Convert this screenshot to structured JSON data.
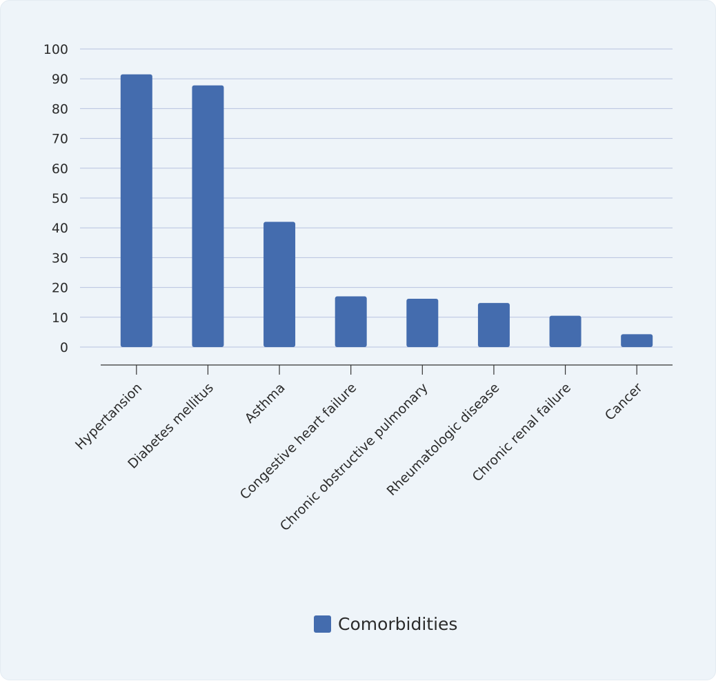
{
  "chart_data": {
    "type": "bar",
    "categories": [
      "Hypertansion",
      "Diabetes mellitus",
      "Asthma",
      "Congestive heart failure",
      "Chronic obstructive pulmonary",
      "Rheumatologic disease",
      "Chronic renal failure",
      "Cancer"
    ],
    "series": [
      {
        "name": "Comorbidities",
        "values": [
          91.5,
          87.8,
          42.0,
          17.0,
          16.2,
          14.8,
          10.5,
          4.3
        ],
        "color": "#446cae"
      }
    ],
    "ylim": [
      0,
      100
    ],
    "yticks": [
      "100",
      "90",
      "80",
      "70",
      "60",
      "50",
      "40",
      "30",
      "20",
      "10",
      "0"
    ],
    "grid": true,
    "legend": "bottom-center"
  }
}
